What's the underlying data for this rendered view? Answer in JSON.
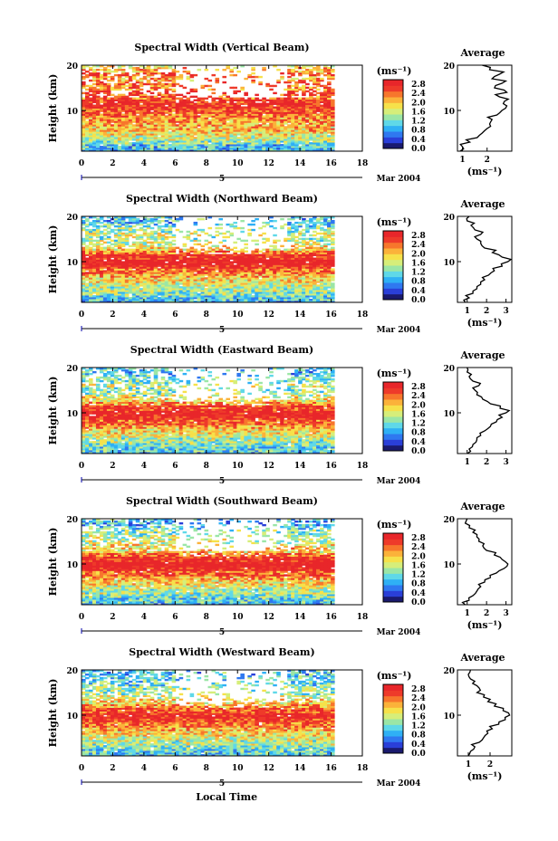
{
  "chart_data": [
    {
      "type": "heatmap",
      "title": "Spectral Width (Vertical Beam)",
      "ylabel": "Height (km)",
      "xlim": [
        0,
        18
      ],
      "ylim": [
        1,
        20
      ],
      "xticks": [
        "0",
        "2",
        "4",
        "6",
        "8",
        "10",
        "12",
        "14",
        "16",
        "18"
      ],
      "yticks": [
        "10",
        "20"
      ],
      "date_marker": "5",
      "date_label": "Mar 2004",
      "colorbar": {
        "unit": "(ms⁻¹)",
        "ticks": [
          "2.8",
          "2.4",
          "2.0",
          "1.6",
          "1.2",
          "0.8",
          "0.4",
          "0.0"
        ],
        "range": [
          0,
          3.0
        ]
      },
      "profile": {
        "title": "Average",
        "unit": "(ms⁻¹)",
        "xticks": [
          "1",
          "2"
        ],
        "xlim": [
          0.8,
          3.0
        ],
        "heights": [
          1,
          2,
          3,
          4,
          5,
          6,
          7,
          8,
          9,
          10,
          11,
          12,
          13,
          14,
          15,
          16,
          17,
          18,
          19,
          20
        ],
        "values": [
          0.9,
          1.0,
          1.3,
          1.6,
          1.8,
          2.0,
          2.1,
          2.2,
          2.4,
          2.6,
          2.8,
          2.7,
          2.5,
          2.8,
          2.3,
          2.6,
          2.2,
          2.5,
          2.1,
          1.8
        ]
      }
    },
    {
      "type": "heatmap",
      "title": "Spectral Width (Northward Beam)",
      "ylabel": "Height (km)",
      "xlim": [
        0,
        18
      ],
      "ylim": [
        1,
        20
      ],
      "xticks": [
        "0",
        "2",
        "4",
        "6",
        "8",
        "10",
        "12",
        "14",
        "16",
        "18"
      ],
      "yticks": [
        "10",
        "20"
      ],
      "date_marker": "5",
      "date_label": "Mar 2004",
      "colorbar": {
        "unit": "(ms⁻¹)",
        "ticks": [
          "2.8",
          "2.4",
          "2.0",
          "1.6",
          "1.2",
          "0.8",
          "0.4",
          "0.0"
        ],
        "range": [
          0,
          3.0
        ]
      },
      "profile": {
        "title": "Average",
        "unit": "(ms⁻¹)",
        "xticks": [
          "1",
          "2",
          "3"
        ],
        "xlim": [
          0.5,
          3.3
        ],
        "heights": [
          1,
          2,
          3,
          4,
          5,
          6,
          7,
          8,
          9,
          10,
          11,
          12,
          13,
          14,
          15,
          16,
          17,
          18,
          19,
          20
        ],
        "values": [
          0.9,
          1.1,
          1.3,
          1.5,
          1.7,
          1.9,
          2.1,
          2.4,
          2.8,
          3.1,
          2.8,
          2.3,
          1.9,
          1.7,
          1.5,
          1.7,
          1.4,
          1.2,
          1.0,
          1.1
        ]
      }
    },
    {
      "type": "heatmap",
      "title": "Spectral Width (Eastward Beam)",
      "ylabel": "Height (km)",
      "xlim": [
        0,
        18
      ],
      "ylim": [
        1,
        20
      ],
      "xticks": [
        "0",
        "2",
        "4",
        "6",
        "8",
        "10",
        "12",
        "14",
        "16",
        "18"
      ],
      "yticks": [
        "10",
        "20"
      ],
      "date_marker": "5",
      "date_label": "Mar 2004",
      "colorbar": {
        "unit": "(ms⁻¹)",
        "ticks": [
          "2.8",
          "2.4",
          "2.0",
          "1.6",
          "1.2",
          "0.8",
          "0.4",
          "0.0"
        ],
        "range": [
          0,
          3.0
        ]
      },
      "profile": {
        "title": "Average",
        "unit": "",
        "xticks": [
          "1",
          "2",
          "3"
        ],
        "xlim": [
          0.5,
          3.3
        ],
        "heights": [
          1,
          2,
          3,
          4,
          5,
          6,
          7,
          8,
          9,
          10,
          11,
          12,
          13,
          14,
          15,
          16,
          17,
          18,
          19,
          20
        ],
        "values": [
          1.0,
          1.1,
          1.3,
          1.5,
          1.7,
          1.9,
          2.2,
          2.5,
          2.8,
          3.0,
          2.7,
          2.2,
          1.8,
          1.5,
          1.4,
          1.6,
          1.3,
          1.1,
          1.0,
          1.0
        ]
      }
    },
    {
      "type": "heatmap",
      "title": "Spectral Width (Southward Beam)",
      "ylabel": "Height (km)",
      "xlim": [
        0,
        18
      ],
      "ylim": [
        1,
        20
      ],
      "xticks": [
        "0",
        "2",
        "4",
        "6",
        "8",
        "10",
        "12",
        "14",
        "16",
        "18"
      ],
      "yticks": [
        "10",
        "20"
      ],
      "date_marker": "5",
      "date_label": "Mar 2004",
      "colorbar": {
        "unit": "(ms⁻¹)",
        "ticks": [
          "2.8",
          "2.4",
          "2.0",
          "1.6",
          "1.2",
          "0.8",
          "0.4",
          "0.0"
        ],
        "range": [
          0,
          3.0
        ]
      },
      "profile": {
        "title": "Average",
        "unit": "(ms⁻¹)",
        "xticks": [
          "1",
          "2",
          "3"
        ],
        "xlim": [
          0.5,
          3.3
        ],
        "heights": [
          1,
          2,
          3,
          4,
          5,
          6,
          7,
          8,
          9,
          10,
          11,
          12,
          13,
          14,
          15,
          16,
          17,
          18,
          19,
          20
        ],
        "values": [
          0.9,
          1.1,
          1.3,
          1.5,
          1.7,
          1.9,
          2.2,
          2.5,
          2.9,
          3.1,
          2.8,
          2.4,
          2.0,
          1.8,
          1.6,
          1.5,
          1.3,
          1.1,
          0.9,
          1.0
        ]
      }
    },
    {
      "type": "heatmap",
      "title": "Spectral Width (Westward Beam)",
      "ylabel": "Height (km)",
      "xlabel": "Local Time",
      "xlim": [
        0,
        18
      ],
      "ylim": [
        1,
        20
      ],
      "xticks": [
        "0",
        "2",
        "4",
        "6",
        "8",
        "10",
        "12",
        "14",
        "16",
        "18"
      ],
      "yticks": [
        "10",
        "20"
      ],
      "date_marker": "5",
      "date_label": "Mar 2004",
      "colorbar": {
        "unit": "(ms⁻¹)",
        "ticks": [
          "2.8",
          "2.4",
          "2.0",
          "1.6",
          "1.2",
          "0.8",
          "0.4",
          "0.0"
        ],
        "range": [
          0,
          3.0
        ]
      },
      "profile": {
        "title": "Average",
        "unit": "(ms⁻¹)",
        "xticks": [
          "1",
          "2"
        ],
        "xlim": [
          0.5,
          3.0
        ],
        "heights": [
          1,
          2,
          3,
          4,
          5,
          6,
          7,
          8,
          9,
          10,
          11,
          12,
          13,
          14,
          15,
          16,
          17,
          18,
          19,
          20
        ],
        "values": [
          1.0,
          1.1,
          1.3,
          1.5,
          1.7,
          1.9,
          2.1,
          2.4,
          2.7,
          2.9,
          2.6,
          2.2,
          1.9,
          1.7,
          1.4,
          1.5,
          1.2,
          1.1,
          1.0,
          1.1
        ]
      }
    }
  ]
}
